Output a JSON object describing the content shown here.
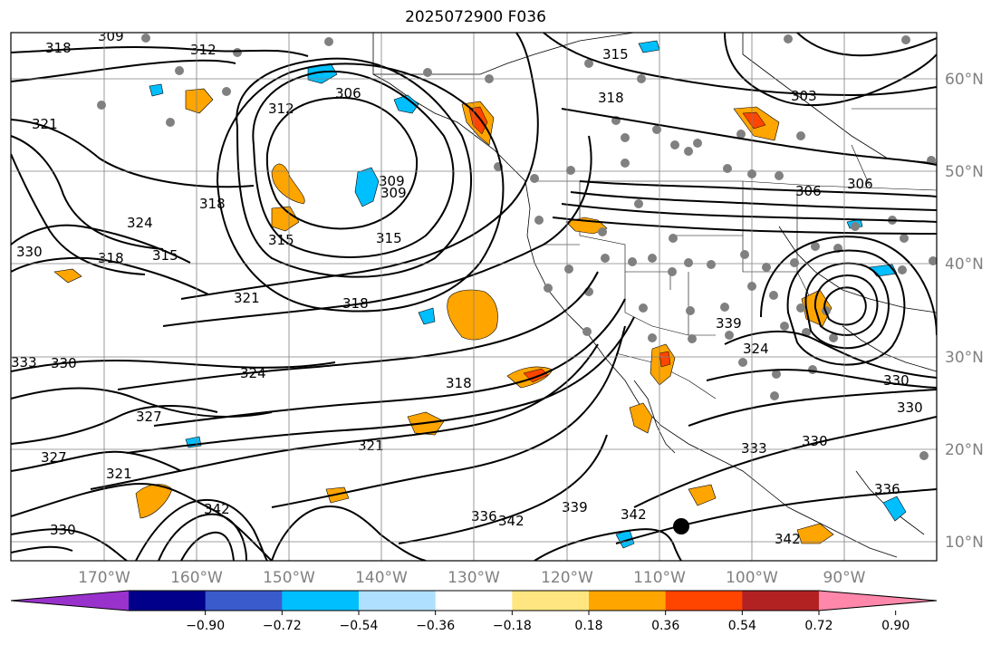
{
  "title": "2025072900 F036",
  "lat_labels": [
    "60°N",
    "50°N",
    "40°N",
    "30°N",
    "20°N",
    "10°N"
  ],
  "lon_labels": [
    "170°W",
    "160°W",
    "150°W",
    "140°W",
    "130°W",
    "120°W",
    "110°W",
    "100°W",
    "90°W"
  ],
  "contour_labels": [
    "318",
    "309",
    "312",
    "315",
    "306",
    "318",
    "303",
    "321",
    "312",
    "306",
    "309",
    "306",
    "324",
    "318",
    "330",
    "318",
    "315",
    "315",
    "321",
    "318",
    "315",
    "309",
    "339",
    "324",
    "330",
    "324",
    "318",
    "321",
    "327",
    "327",
    "321",
    "342",
    "333",
    "330",
    "342",
    "336",
    "339",
    "342",
    "342",
    "336",
    "330",
    "333",
    "330",
    "330"
  ],
  "colorbar": {
    "ticks": [
      "−0.90",
      "−0.72",
      "−0.54",
      "−0.36",
      "−0.18",
      "0.18",
      "0.36",
      "0.54",
      "0.72",
      "0.90"
    ],
    "colors": [
      "#9932cc",
      "#00008b",
      "#3a5bcc",
      "#00bfff",
      "#b0e0ff",
      "#ffffff",
      "#ffe680",
      "#ffa500",
      "#ff4500",
      "#b22222",
      "#ff88aa"
    ]
  }
}
